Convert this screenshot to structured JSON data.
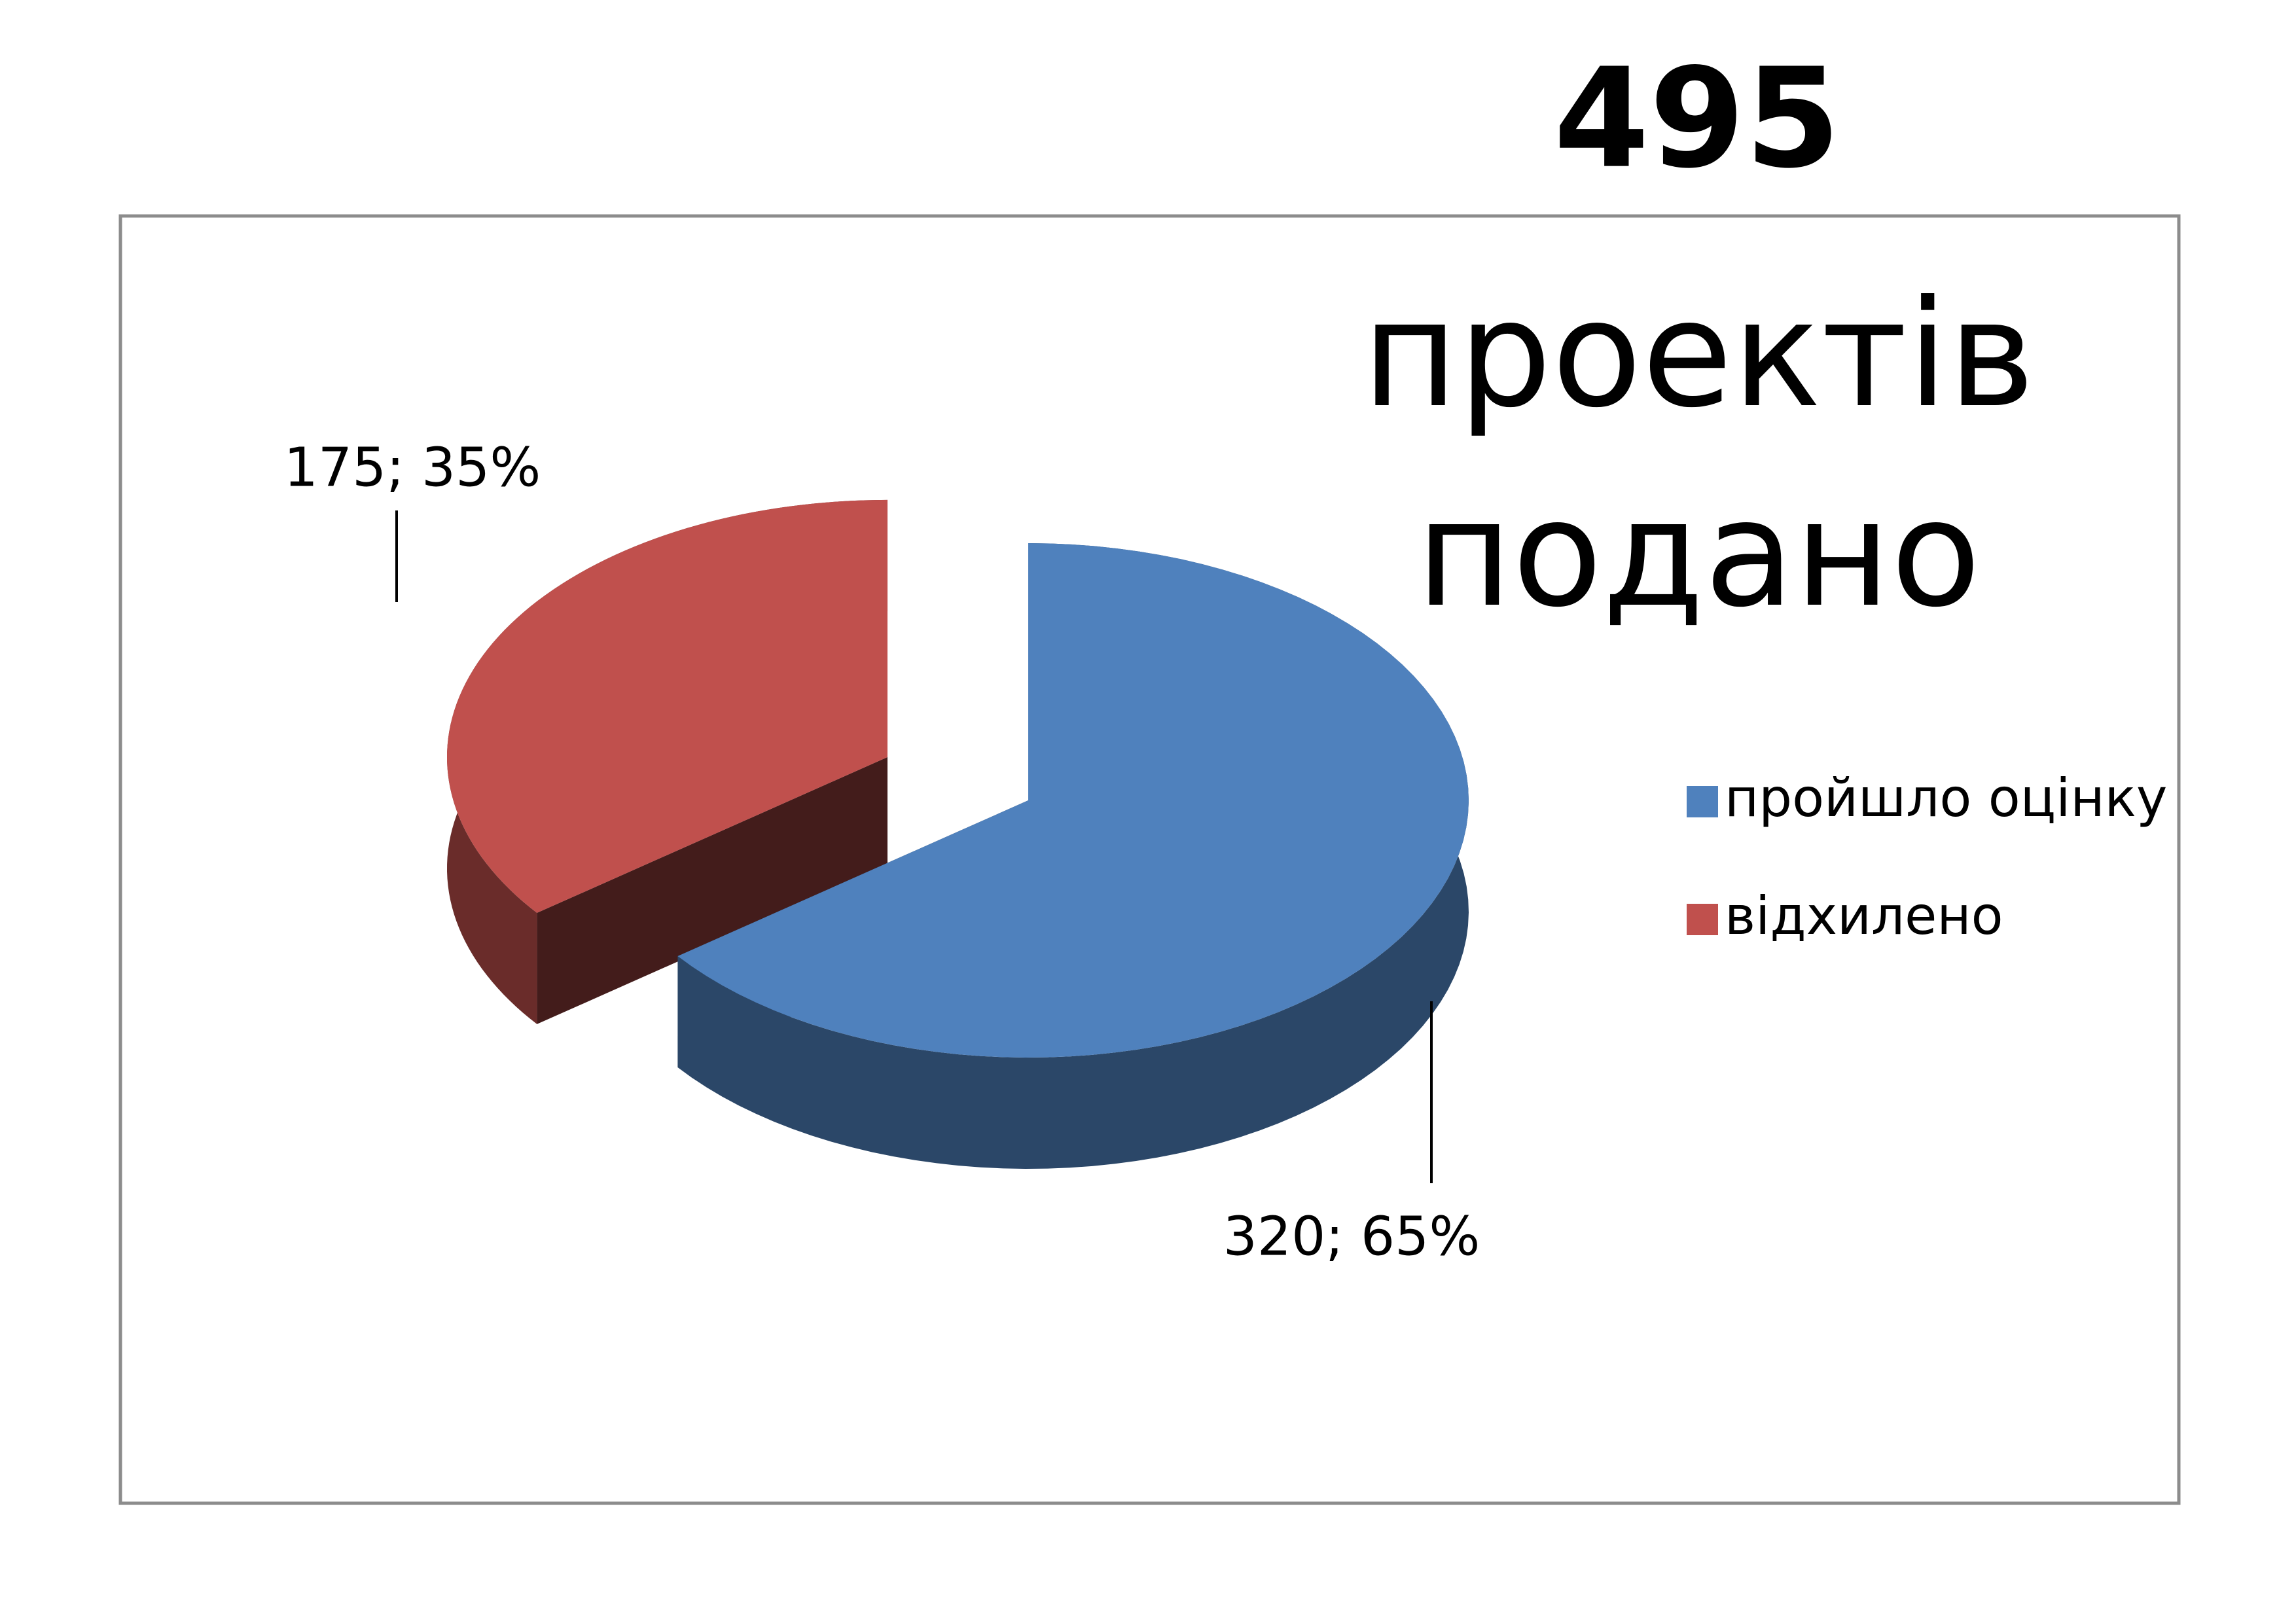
{
  "chart_data": {
    "type": "pie",
    "title": "495",
    "subtitle": "проектів подано",
    "categories": [
      "пройшло оцінку",
      "відхилено"
    ],
    "series": [
      {
        "values": [
          320,
          175
        ],
        "value_labels": [
          "320; 65%",
          "175; 35%"
        ],
        "colors": [
          "#4f81bd",
          "#c0504d"
        ]
      }
    ],
    "legend": "right"
  }
}
